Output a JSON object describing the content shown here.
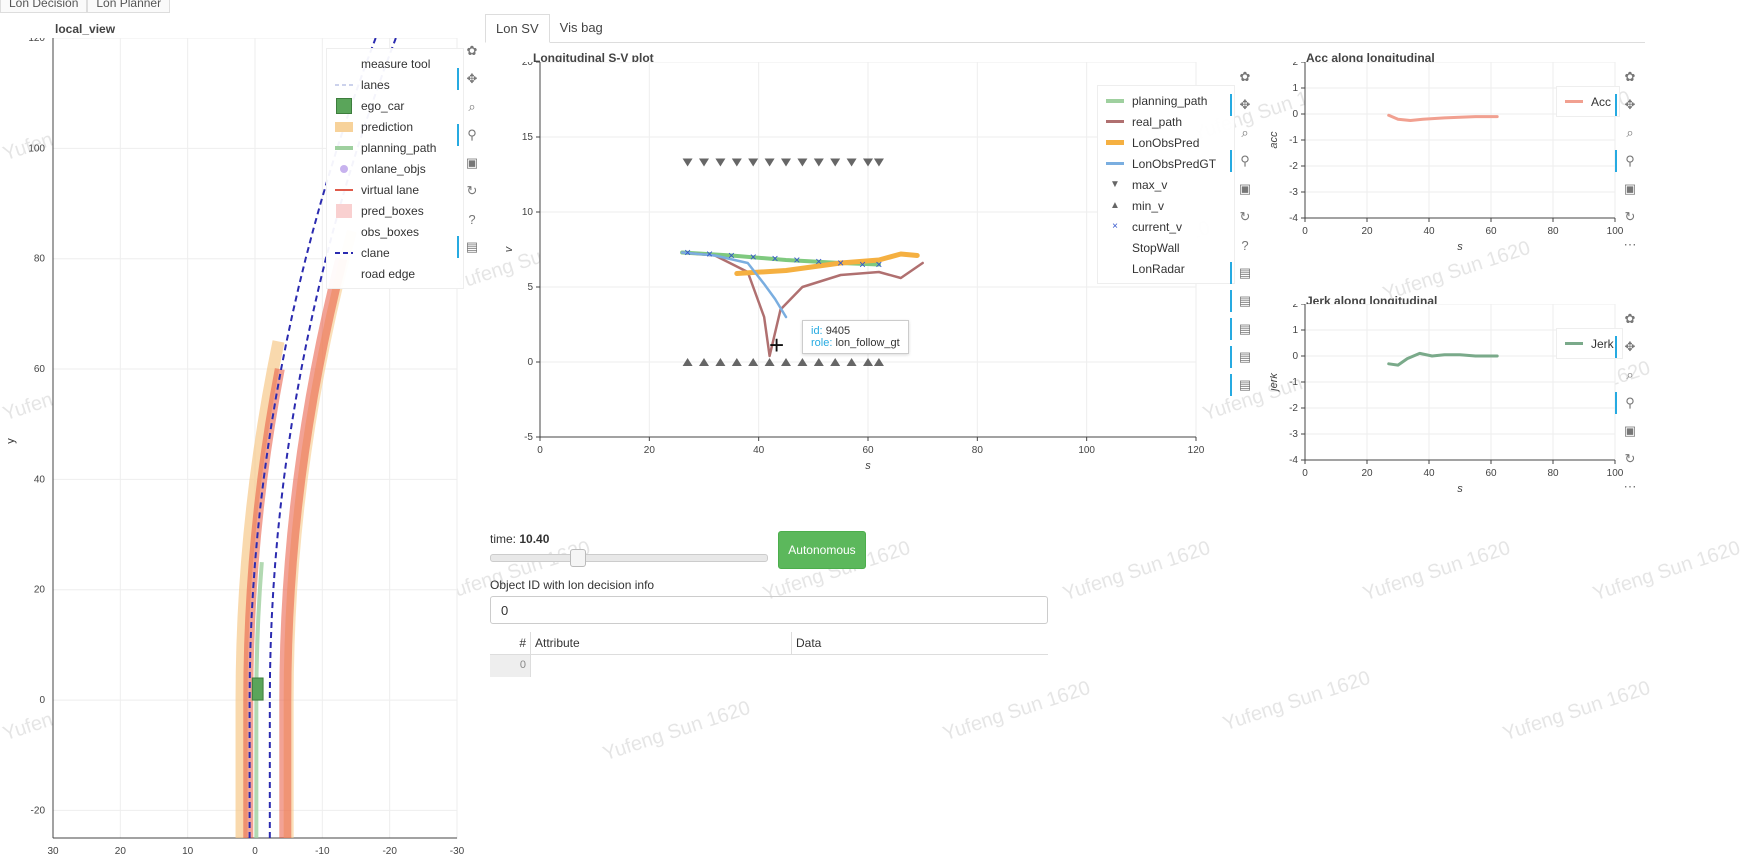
{
  "top_tabs": [
    "Lon Decision",
    "Lon Planner"
  ],
  "local_view": {
    "title": "local_view",
    "ylabel": "y",
    "x_ticks": [
      "30",
      "20",
      "10",
      "0",
      "-10",
      "-20",
      "-30"
    ],
    "y_ticks": [
      "120",
      "100",
      "80",
      "60",
      "40",
      "20",
      "0",
      "-20"
    ],
    "legend": [
      "measure tool",
      "lanes",
      "ego_car",
      "prediction",
      "planning_path",
      "onlane_objs",
      "virtual lane",
      "pred_boxes",
      "obs_boxes",
      "clane",
      "road edge"
    ]
  },
  "tabs": [
    "Lon SV",
    "Vis bag"
  ],
  "sv_plot": {
    "title": "Longitudinal S-V plot",
    "xlabel": "s",
    "ylabel": "v",
    "x_ticks": [
      "0",
      "20",
      "40",
      "60",
      "80",
      "100",
      "120"
    ],
    "y_ticks": [
      "20",
      "15",
      "10",
      "5",
      "0",
      "-5"
    ],
    "legend": [
      "planning_path",
      "real_path",
      "LonObsPred",
      "LonObsPredGT",
      "max_v",
      "min_v",
      "current_v",
      "StopWall",
      "LonRadar"
    ],
    "tooltip": {
      "id_label": "id:",
      "id_value": "9405",
      "role_label": "role:",
      "role_value": "lon_follow_gt"
    }
  },
  "chart_data": [
    {
      "type": "line",
      "title": "Longitudinal S-V plot",
      "xlabel": "s",
      "ylabel": "v",
      "xlim": [
        0,
        120
      ],
      "ylim": [
        -5,
        20
      ],
      "series": [
        {
          "name": "planning_path",
          "x": [
            26,
            35,
            45,
            55,
            62
          ],
          "y": [
            7.3,
            7.1,
            6.8,
            6.6,
            6.5
          ]
        },
        {
          "name": "real_path",
          "x": [
            26,
            32,
            38,
            41,
            42,
            44,
            48,
            55,
            62,
            66,
            70
          ],
          "y": [
            7.3,
            7.1,
            6.0,
            3.0,
            0.4,
            3.5,
            5.0,
            5.8,
            6.0,
            5.6,
            6.6
          ]
        },
        {
          "name": "LonObsPred",
          "x": [
            36,
            45,
            55,
            62,
            66,
            69
          ],
          "y": [
            5.9,
            6.1,
            6.6,
            6.8,
            7.2,
            7.1
          ]
        },
        {
          "name": "LonObsPredGT",
          "x": [
            26,
            32,
            38,
            41,
            43,
            45
          ],
          "y": [
            7.3,
            7.1,
            6.6,
            5.2,
            4.2,
            3.0
          ]
        },
        {
          "name": "max_v",
          "x": [
            27,
            30,
            33,
            36,
            39,
            42,
            45,
            48,
            51,
            54,
            57,
            60,
            62
          ],
          "y": [
            13.3,
            13.3,
            13.3,
            13.3,
            13.3,
            13.3,
            13.3,
            13.3,
            13.3,
            13.3,
            13.3,
            13.3,
            13.3
          ]
        },
        {
          "name": "min_v",
          "x": [
            27,
            30,
            33,
            36,
            39,
            42,
            45,
            48,
            51,
            54,
            57,
            60,
            62
          ],
          "y": [
            0,
            0,
            0,
            0,
            0,
            0,
            0,
            0,
            0,
            0,
            0,
            0,
            0
          ]
        },
        {
          "name": "current_v",
          "x": [
            27,
            31,
            35,
            39,
            43,
            47,
            51,
            55,
            59,
            62
          ],
          "y": [
            7.3,
            7.2,
            7.1,
            7.0,
            6.9,
            6.8,
            6.7,
            6.6,
            6.5,
            6.5
          ]
        }
      ]
    },
    {
      "type": "line",
      "title": "Acc along longitudinal",
      "xlabel": "s",
      "ylabel": "acc",
      "xlim": [
        0,
        100
      ],
      "ylim": [
        -4,
        2
      ],
      "series": [
        {
          "name": "Acc",
          "x": [
            27,
            30,
            34,
            38,
            45,
            55,
            62
          ],
          "y": [
            -0.05,
            -0.2,
            -0.25,
            -0.2,
            -0.15,
            -0.1,
            -0.1
          ]
        }
      ]
    },
    {
      "type": "line",
      "title": "Jerk along longitudinal",
      "xlabel": "s",
      "ylabel": "jerk",
      "xlim": [
        0,
        100
      ],
      "ylim": [
        -4,
        2
      ],
      "series": [
        {
          "name": "Jerk",
          "x": [
            27,
            30,
            33,
            37,
            41,
            45,
            50,
            55,
            62
          ],
          "y": [
            -0.3,
            -0.35,
            -0.1,
            0.1,
            0.0,
            0.05,
            0.05,
            0.0,
            0.0
          ]
        }
      ]
    }
  ],
  "acc_plot": {
    "title": "Acc along longitudinal",
    "xlabel": "s",
    "ylabel": "acc",
    "legend": "Acc",
    "x_ticks": [
      "0",
      "20",
      "40",
      "60",
      "80",
      "100"
    ],
    "y_ticks": [
      "2",
      "1",
      "0",
      "-1",
      "-2",
      "-3",
      "-4"
    ]
  },
  "jerk_plot": {
    "title": "Jerk along longitudinal",
    "xlabel": "s",
    "ylabel": "jerk",
    "legend": "Jerk",
    "x_ticks": [
      "0",
      "20",
      "40",
      "60",
      "80",
      "100"
    ],
    "y_ticks": [
      "2",
      "1",
      "0",
      "-1",
      "-2",
      "-3",
      "-4"
    ]
  },
  "controls": {
    "time_label": "time:",
    "time_value": "10.40",
    "time_fraction": 0.31,
    "mode_button": "Autonomous",
    "object_id_label": "Object ID with lon decision info",
    "object_id_value": "0",
    "table": {
      "headers": [
        "#",
        "Attribute",
        "Data"
      ],
      "rows": [
        [
          "0",
          "",
          ""
        ]
      ]
    }
  },
  "watermark_text": "Yufeng Sun 1620",
  "colors": {
    "planning_path": "#7fc97f",
    "real_path": "#b07070",
    "LonObsPred": "#f5b041",
    "LonObsPredGT": "#7aaee0",
    "marker_gray": "#666666",
    "current_v": "#3355cc",
    "acc": "#f1a090",
    "jerk": "#7aaa8a",
    "accent": "#26aae1",
    "button_green": "#5cb85c"
  }
}
